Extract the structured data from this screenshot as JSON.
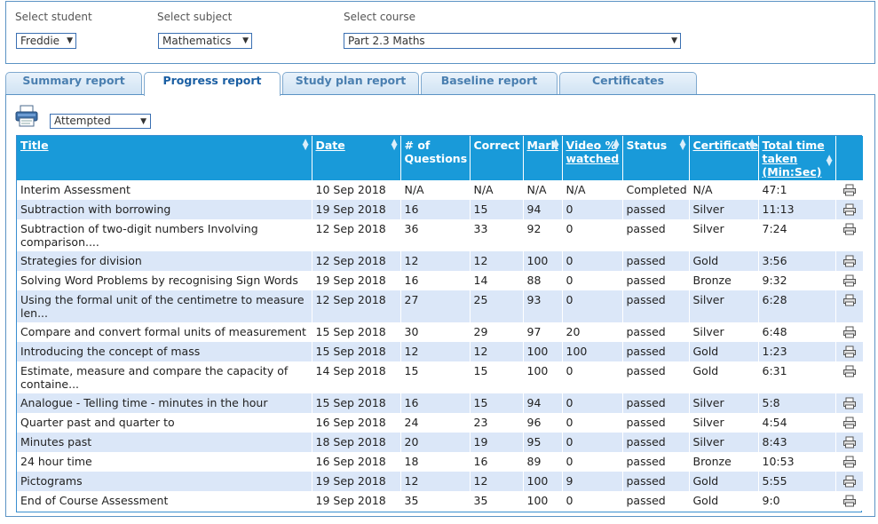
{
  "filters": {
    "student": {
      "label": "Select student",
      "value": "Freddie"
    },
    "subject": {
      "label": "Select subject",
      "value": "Mathematics"
    },
    "course": {
      "label": "Select course",
      "value": "Part 2.3 Maths"
    }
  },
  "tabs": [
    {
      "label": "Summary report",
      "active": false
    },
    {
      "label": "Progress report",
      "active": true
    },
    {
      "label": "Study plan report",
      "active": false
    },
    {
      "label": "Baseline report",
      "active": false
    },
    {
      "label": "Certificates",
      "active": false
    }
  ],
  "toolbar": {
    "print_icon": "printer-icon",
    "filter_value": "Attempted"
  },
  "table": {
    "headers": [
      {
        "line1": "Title",
        "line2": "",
        "line3": "",
        "link": true
      },
      {
        "line1": "Date",
        "line2": "",
        "line3": "",
        "link": true
      },
      {
        "line1": "# of",
        "line2": "Questions",
        "line3": "",
        "link": false
      },
      {
        "line1": "Correct",
        "line2": "",
        "line3": "",
        "link": false
      },
      {
        "line1": "Mark",
        "line2": "",
        "line3": "",
        "link": true
      },
      {
        "line1": "Video %",
        "line2": "watched",
        "line3": "",
        "link": true
      },
      {
        "line1": "Status",
        "line2": "",
        "line3": "",
        "link": false
      },
      {
        "line1": "Certificate",
        "line2": "",
        "line3": "",
        "link": true
      },
      {
        "line1": "Total time",
        "line2": "taken",
        "line3": "(Min:Sec)",
        "link": true
      }
    ],
    "rows": [
      {
        "title": "Interim Assessment",
        "date": "10 Sep 2018",
        "questions": "N/A",
        "correct": "N/A",
        "mark": "N/A",
        "video": "N/A",
        "status": "Completed",
        "certificate": "N/A",
        "time": "47:1"
      },
      {
        "title": "Subtraction with borrowing",
        "date": "19 Sep 2018",
        "questions": "16",
        "correct": "15",
        "mark": "94",
        "video": "0",
        "status": "passed",
        "certificate": "Silver",
        "time": "11:13"
      },
      {
        "title": "Subtraction of two-digit numbers Involving comparison....",
        "date": "12 Sep 2018",
        "questions": "36",
        "correct": "33",
        "mark": "92",
        "video": "0",
        "status": "passed",
        "certificate": "Silver",
        "time": "7:24"
      },
      {
        "title": "Strategies for division",
        "date": "12 Sep 2018",
        "questions": "12",
        "correct": "12",
        "mark": "100",
        "video": "0",
        "status": "passed",
        "certificate": "Gold",
        "time": "3:56"
      },
      {
        "title": "Solving Word Problems by recognising Sign Words",
        "date": "19 Sep 2018",
        "questions": "16",
        "correct": "14",
        "mark": "88",
        "video": "0",
        "status": "passed",
        "certificate": "Bronze",
        "time": "9:32"
      },
      {
        "title": "Using the formal unit of the centimetre to measure len...",
        "date": "12 Sep 2018",
        "questions": "27",
        "correct": "25",
        "mark": "93",
        "video": "0",
        "status": "passed",
        "certificate": "Silver",
        "time": "6:28"
      },
      {
        "title": "Compare and convert formal units of measurement",
        "date": "15 Sep 2018",
        "questions": "30",
        "correct": "29",
        "mark": "97",
        "video": "20",
        "status": "passed",
        "certificate": "Silver",
        "time": "6:48"
      },
      {
        "title": "Introducing the concept of mass",
        "date": "15 Sep 2018",
        "questions": "12",
        "correct": "12",
        "mark": "100",
        "video": "100",
        "status": "passed",
        "certificate": "Gold",
        "time": "1:23"
      },
      {
        "title": "Estimate, measure and compare the capacity of containe...",
        "date": "14 Sep 2018",
        "questions": "15",
        "correct": "15",
        "mark": "100",
        "video": "0",
        "status": "passed",
        "certificate": "Gold",
        "time": "6:31"
      },
      {
        "title": "Analogue - Telling time - minutes in the hour",
        "date": "15 Sep 2018",
        "questions": "16",
        "correct": "15",
        "mark": "94",
        "video": "0",
        "status": "passed",
        "certificate": "Silver",
        "time": "5:8"
      },
      {
        "title": "Quarter past and quarter to",
        "date": "16 Sep 2018",
        "questions": "24",
        "correct": "23",
        "mark": "96",
        "video": "0",
        "status": "passed",
        "certificate": "Silver",
        "time": "4:54"
      },
      {
        "title": "Minutes past",
        "date": "18 Sep 2018",
        "questions": "20",
        "correct": "19",
        "mark": "95",
        "video": "0",
        "status": "passed",
        "certificate": "Silver",
        "time": "8:43"
      },
      {
        "title": "24 hour time",
        "date": "16 Sep 2018",
        "questions": "18",
        "correct": "16",
        "mark": "89",
        "video": "0",
        "status": "passed",
        "certificate": "Bronze",
        "time": "10:53"
      },
      {
        "title": "Pictograms",
        "date": "19 Sep 2018",
        "questions": "12",
        "correct": "12",
        "mark": "100",
        "video": "9",
        "status": "passed",
        "certificate": "Gold",
        "time": "5:55"
      },
      {
        "title": "End of Course Assessment",
        "date": "19 Sep 2018",
        "questions": "35",
        "correct": "35",
        "mark": "100",
        "video": "0",
        "status": "passed",
        "certificate": "Gold",
        "time": "9:0"
      }
    ]
  },
  "colors": {
    "header_bg": "#199ad9",
    "row_alt": "#dbe7f8",
    "border": "#5b93c4"
  }
}
